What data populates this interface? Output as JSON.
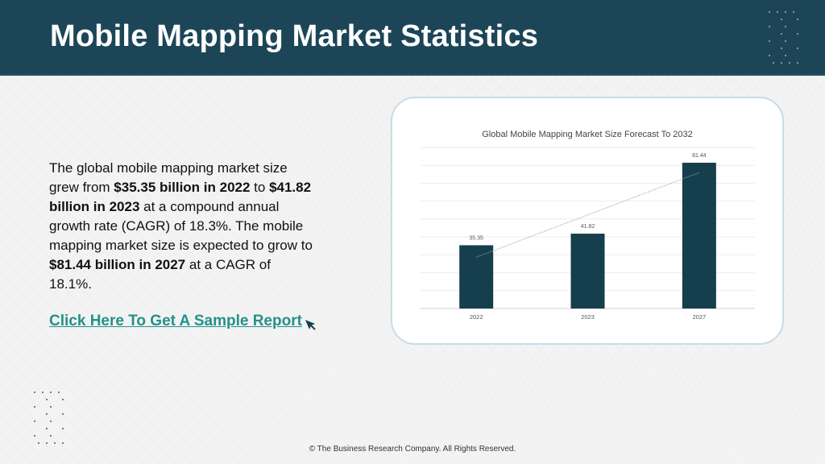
{
  "header": {
    "title": "Mobile Mapping Market Statistics"
  },
  "body": {
    "p1": "The global mobile mapping market size grew from ",
    "b1": "$35.35 billion in 2022",
    "p2": " to ",
    "b2": "$41.82 billion in 2023",
    "p3": " at a compound annual growth rate (CAGR) of 18.3%. The mobile mapping market size is expected to grow to ",
    "b3": "$81.44 billion in 2027",
    "p4": " at a CAGR of 18.1%.",
    "link": "Click Here To Get A Sample Report"
  },
  "icons": {
    "cursor": "cursor-arrow-icon",
    "dots": "dot-pattern-icon"
  },
  "colors": {
    "header_bg": "#1c4657",
    "bar": "#163f4e",
    "link": "#23918a"
  },
  "chart_data": {
    "type": "bar",
    "title": "Global Mobile Mapping Market Size Forecast To 2032",
    "categories": [
      "2022",
      "2023",
      "2027"
    ],
    "values": [
      35.35,
      41.82,
      81.44
    ],
    "data_labels": [
      "35.35",
      "41.82",
      "81.44"
    ],
    "ylim": [
      0,
      90
    ],
    "grid": true,
    "trendline": true,
    "xlabel": "",
    "ylabel": ""
  },
  "footer": {
    "copyright": "© The Business Research Company. All Rights Reserved."
  }
}
